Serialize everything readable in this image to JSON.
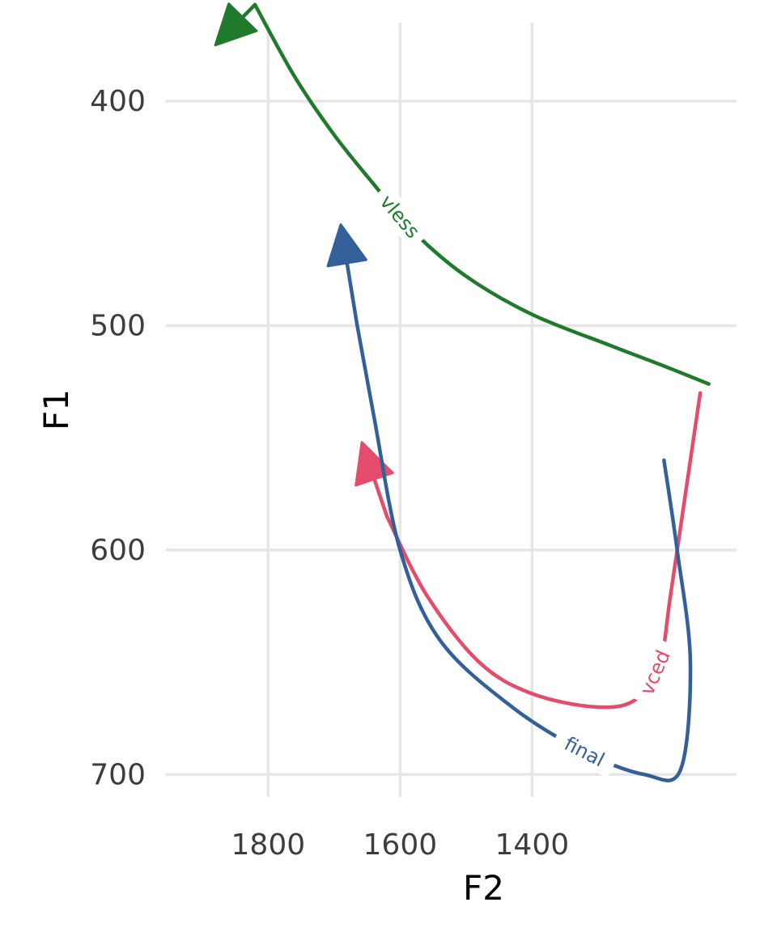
{
  "chart_data": {
    "type": "line",
    "xlabel": "F2",
    "ylabel": "F1",
    "x_reversed": true,
    "y_reversed": true,
    "xlim": [
      1090,
      1955
    ],
    "ylim": [
      365,
      710
    ],
    "x_ticks": [
      1800,
      1600,
      1400
    ],
    "y_ticks": [
      400,
      500,
      600,
      700
    ],
    "grid": true,
    "legend": "none (labels placed directly on series)",
    "series": [
      {
        "name": "vless",
        "color": "#1f7a2b",
        "arrow_at": "end",
        "points": [
          [
            1132,
            526
          ],
          [
            1200,
            518
          ],
          [
            1280,
            509
          ],
          [
            1400,
            495
          ],
          [
            1500,
            478
          ],
          [
            1580,
            458
          ],
          [
            1640,
            437
          ],
          [
            1700,
            415
          ],
          [
            1760,
            389
          ],
          [
            1820,
            357
          ],
          [
            1880,
            375
          ]
        ]
      },
      {
        "name": "vced",
        "color": "#e34d6b",
        "arrow_at": "end",
        "points": [
          [
            1145,
            530
          ],
          [
            1160,
            560
          ],
          [
            1190,
            620
          ],
          [
            1205,
            648
          ],
          [
            1240,
            666
          ],
          [
            1300,
            670
          ],
          [
            1400,
            664
          ],
          [
            1480,
            650
          ],
          [
            1560,
            620
          ],
          [
            1620,
            585
          ],
          [
            1658,
            552
          ]
        ]
      },
      {
        "name": "final",
        "color": "#34609a",
        "arrow_at": "end",
        "points": [
          [
            1200,
            560
          ],
          [
            1180,
            600
          ],
          [
            1160,
            650
          ],
          [
            1175,
            698
          ],
          [
            1230,
            700
          ],
          [
            1320,
            690
          ],
          [
            1430,
            670
          ],
          [
            1540,
            640
          ],
          [
            1600,
            600
          ],
          [
            1640,
            540
          ],
          [
            1665,
            500
          ],
          [
            1690,
            455
          ]
        ]
      }
    ]
  }
}
